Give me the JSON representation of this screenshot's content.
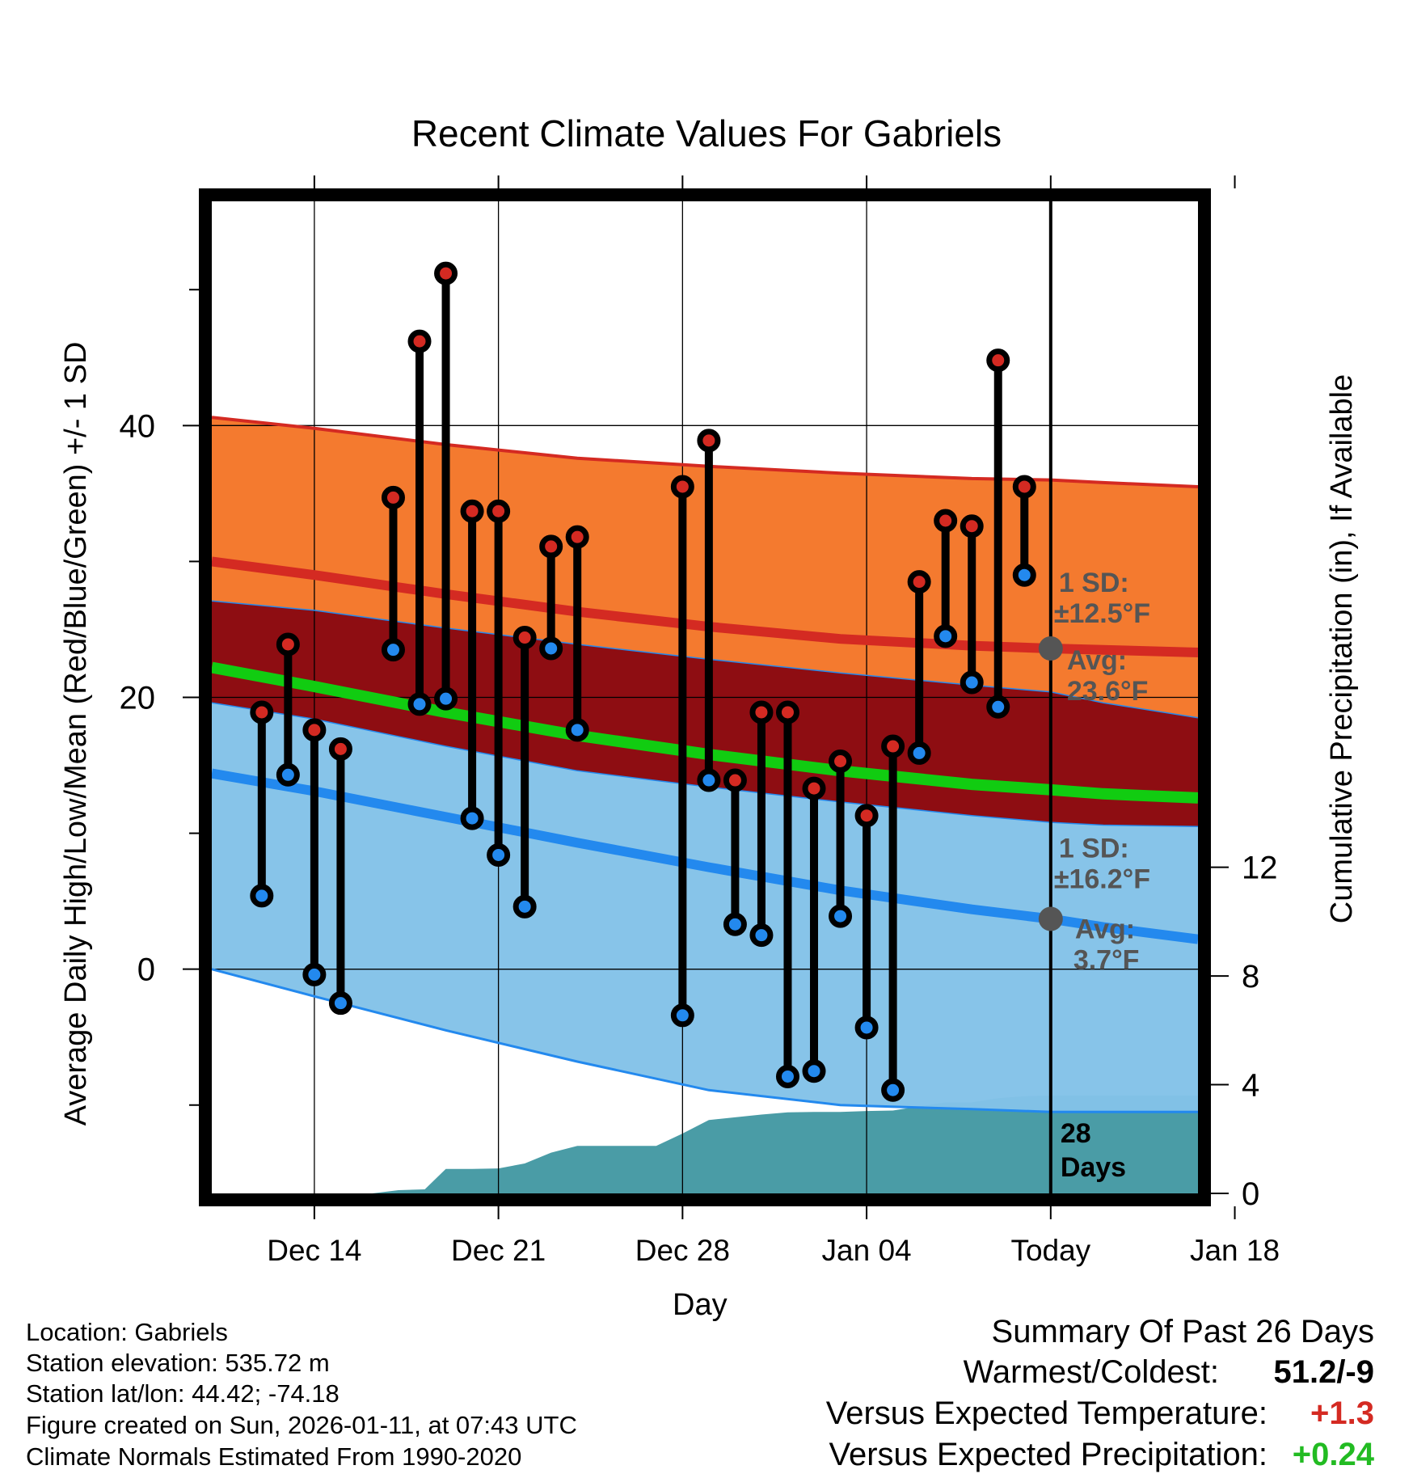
{
  "chart_data": {
    "type": "climate-range",
    "title": "Recent Climate Values For Gabriels",
    "xlabel": "Day",
    "ylabel": "Average Daily High/Low/Mean (Red/Blue/Green) +/- 1 SD",
    "y2label": "Cumulative Precipitation (in), If Available",
    "ylim": [
      -16.5,
      56.5
    ],
    "y2lim": [
      0,
      36.5
    ],
    "xlim": [
      -3.9,
      33.6
    ],
    "y_ticks": [
      0,
      20,
      40
    ],
    "y_ticklabels": [
      "0",
      "20",
      "40"
    ],
    "y2_ticks": [
      0,
      4,
      8,
      12
    ],
    "y2_ticklabels": [
      "0",
      "4",
      "8",
      "12"
    ],
    "x_ticks": [
      0,
      7,
      14,
      21,
      28,
      35
    ],
    "x_ticklabels": [
      "Dec 14",
      "Dec 21",
      "Dec 28",
      "Jan 04",
      "Today",
      "Jan 18"
    ],
    "today_x": 28,
    "today_window_label": "28",
    "today_window_unit": "Days",
    "normal_high": {
      "x": [
        -3.9,
        0,
        5,
        10,
        15,
        20,
        25,
        28,
        30,
        33.6
      ],
      "mean": [
        30,
        29,
        27.6,
        26.3,
        25.2,
        24.3,
        23.8,
        23.6,
        23.5,
        23.3
      ],
      "upper": [
        40.6,
        39.8,
        38.6,
        37.6,
        37,
        36.5,
        36.1,
        36.0,
        35.8,
        35.5
      ],
      "lower": [
        27.1,
        26.4,
        25.1,
        23.9,
        22.8,
        21.8,
        20.9,
        20.4,
        19.6,
        18.5
      ]
    },
    "normal_low": {
      "x": [
        -3.9,
        0,
        5,
        10,
        15,
        20,
        25,
        28,
        30,
        33.6
      ],
      "mean": [
        14.4,
        13.1,
        11.2,
        9.3,
        7.5,
        5.8,
        4.4,
        3.7,
        3.1,
        2.2
      ],
      "upper": [
        19.6,
        18.4,
        16.4,
        14.6,
        13.4,
        12.3,
        11.3,
        10.8,
        10.6,
        10.5
      ],
      "lower": [
        0,
        -2.0,
        -4.5,
        -6.8,
        -8.9,
        -10.0,
        -10.3,
        -10.5,
        -10.5,
        -10.5
      ]
    },
    "normal_mean": {
      "x": [
        -3.9,
        0,
        5,
        10,
        15,
        20,
        25,
        28,
        30,
        33.6
      ],
      "values": [
        22.2,
        20.8,
        18.9,
        17.2,
        15.8,
        14.6,
        13.6,
        13.2,
        12.9,
        12.6
      ]
    },
    "daily_obs": {
      "x": [
        -2,
        -1,
        0,
        1,
        3,
        4,
        5,
        6,
        7,
        8,
        9,
        10,
        14,
        15,
        16,
        17,
        18,
        19,
        20,
        21,
        22,
        23,
        24,
        25,
        26,
        27
      ],
      "high": [
        18.9,
        23.9,
        17.6,
        16.2,
        34.7,
        46.2,
        51.2,
        33.7,
        33.7,
        24.4,
        31.1,
        31.8,
        35.5,
        38.9,
        13.9,
        18.9,
        18.9,
        13.3,
        15.3,
        11.3,
        16.4,
        28.5,
        33.0,
        32.6,
        44.8,
        35.5
      ],
      "low": [
        5.4,
        14.3,
        -0.4,
        -2.5,
        23.5,
        19.5,
        19.9,
        11.1,
        8.4,
        4.6,
        23.6,
        17.6,
        -3.4,
        13.9,
        3.3,
        2.5,
        -7.9,
        -7.5,
        3.9,
        -4.3,
        -8.9,
        15.9,
        24.5,
        21.1,
        19.3,
        29.0
      ]
    },
    "precip": {
      "x": [
        -3.9,
        2.2,
        3.2,
        4.2,
        5.0,
        6.0,
        7.0,
        8.0,
        9.0,
        10.0,
        11.0,
        12.0,
        13.0,
        14.0,
        15.0,
        16.0,
        17.0,
        18.0,
        19.0,
        20.0,
        21.0,
        22.0,
        23.0,
        24.0,
        25.0,
        26.0,
        27.0,
        28.0,
        33.6
      ],
      "values": [
        0,
        0,
        0.12,
        0.15,
        0.9,
        0.9,
        0.92,
        1.1,
        1.5,
        1.75,
        1.75,
        1.75,
        1.75,
        2.2,
        2.7,
        2.8,
        2.9,
        2.98,
        3.0,
        3.0,
        3.03,
        3.05,
        3.2,
        3.35,
        3.35,
        3.5,
        3.58,
        3.6,
        3.6
      ]
    },
    "high_annotation": {
      "sd_label": "1 SD:",
      "sd_value": "±12.5°F",
      "avg_label": "Avg:",
      "avg_value": "23.6°F",
      "marker_value": 23.6
    },
    "low_annotation": {
      "sd_label": "1 SD:",
      "sd_value": "±16.2°F",
      "avg_label": "Avg:",
      "avg_value": "3.7°F",
      "marker_value": 3.7
    },
    "colors": {
      "high_band": "#f47a2f",
      "high_band_dark": "#8e0d12",
      "high_mean": "#d42a22",
      "high_upper": "#d42a22",
      "low_band": "#83c2e8",
      "low_mean": "#2389ee",
      "low_edge": "#2389ee",
      "mean_line": "#11cc11",
      "precip": "#4a9ca6",
      "high_dot": "#d42a22",
      "low_dot": "#2389ee",
      "annotation": "#555555"
    }
  },
  "footer": {
    "location": "Location: Gabriels",
    "elevation": "Station elevation: 535.72 m",
    "latlon": "Station lat/lon: 44.42; -74.18",
    "created": "Figure created on Sun, 2026-01-11, at 07:43 UTC",
    "normals": "Climate Normals Estimated From 1990-2020"
  },
  "summary": {
    "title": "Summary Of Past 26 Days",
    "warm_cold_label": "Warmest/Coldest:",
    "warm_cold_value": "51.2/-9",
    "temp_label": "Versus Expected Temperature:",
    "temp_value": "+1.3",
    "temp_color": "#d42a22",
    "precip_label": "Versus Expected Precipitation:",
    "precip_value": "+0.24",
    "precip_color": "#22bb22"
  }
}
